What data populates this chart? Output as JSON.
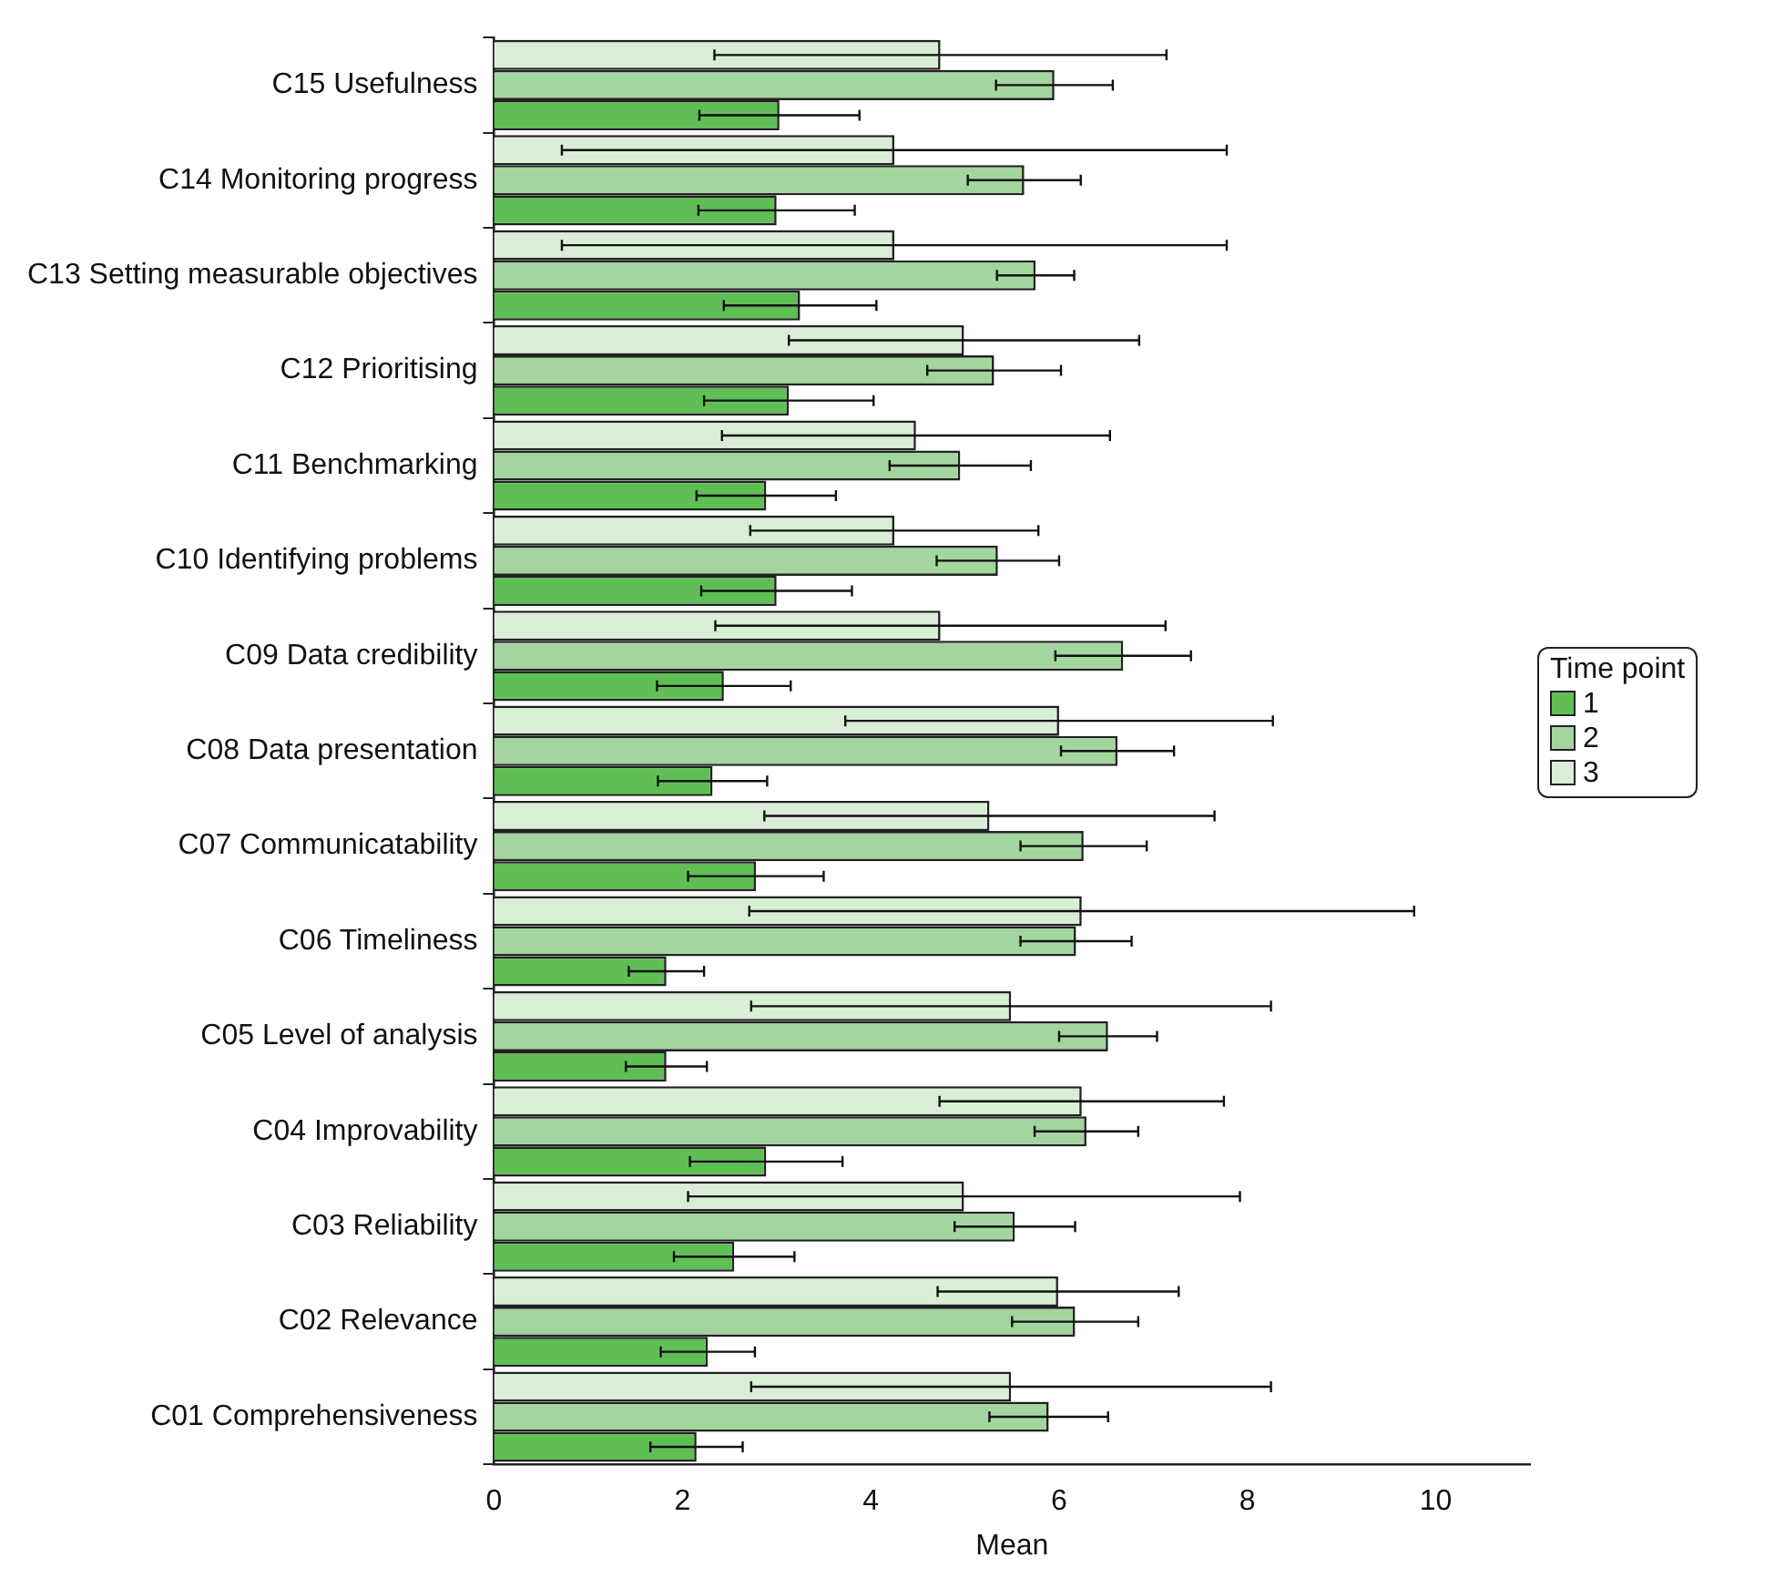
{
  "chart_data": {
    "type": "bar",
    "orientation": "horizontal",
    "xlabel": "Mean",
    "legend_title": "Time point",
    "legend": "right",
    "grid": false,
    "categories": [
      "C15 Usefulness",
      "C14 Monitoring progress",
      "C13 Setting measurable objectives",
      "C12 Prioritising",
      "C11 Benchmarking",
      "C10 Identifying problems",
      "C09 Data credibility",
      "C08 Data presentation",
      "C07 Communicatability",
      "C06 Timeliness",
      "C05 Level of analysis",
      "C04 Improvability",
      "C03 Reliability",
      "C02 Relevance",
      "C01 Comprehensiveness"
    ],
    "xlim": [
      0,
      11
    ],
    "xticks": [
      0,
      2,
      4,
      6,
      8,
      10
    ],
    "series": [
      {
        "name": "1",
        "color": "#5fbf55",
        "values": [
          3.03,
          3.0,
          3.25,
          3.13,
          2.89,
          3.0,
          2.44,
          2.32,
          2.78,
          1.83,
          1.83,
          2.89,
          2.55,
          2.27,
          2.15
        ],
        "errors": [
          0.85,
          0.83,
          0.81,
          0.9,
          0.74,
          0.8,
          0.71,
          0.58,
          0.72,
          0.4,
          0.43,
          0.81,
          0.64,
          0.5,
          0.49
        ]
      },
      {
        "name": "2",
        "color": "#a3d69e",
        "values": [
          5.95,
          5.63,
          5.75,
          5.31,
          4.95,
          5.35,
          6.68,
          6.62,
          6.26,
          6.18,
          6.52,
          6.29,
          5.53,
          6.17,
          5.89
        ],
        "errors": [
          0.62,
          0.6,
          0.41,
          0.71,
          0.75,
          0.65,
          0.72,
          0.6,
          0.67,
          0.59,
          0.52,
          0.55,
          0.64,
          0.67,
          0.63
        ]
      },
      {
        "name": "3",
        "color": "#daedd7",
        "values": [
          4.74,
          4.25,
          4.25,
          4.99,
          4.48,
          4.25,
          4.74,
          6.0,
          5.26,
          6.24,
          5.49,
          6.24,
          4.99,
          5.99,
          5.49
        ],
        "errors": [
          2.4,
          3.53,
          3.53,
          1.86,
          2.06,
          1.53,
          2.39,
          2.27,
          2.39,
          3.53,
          2.76,
          1.51,
          2.93,
          1.28,
          2.76
        ]
      }
    ]
  }
}
